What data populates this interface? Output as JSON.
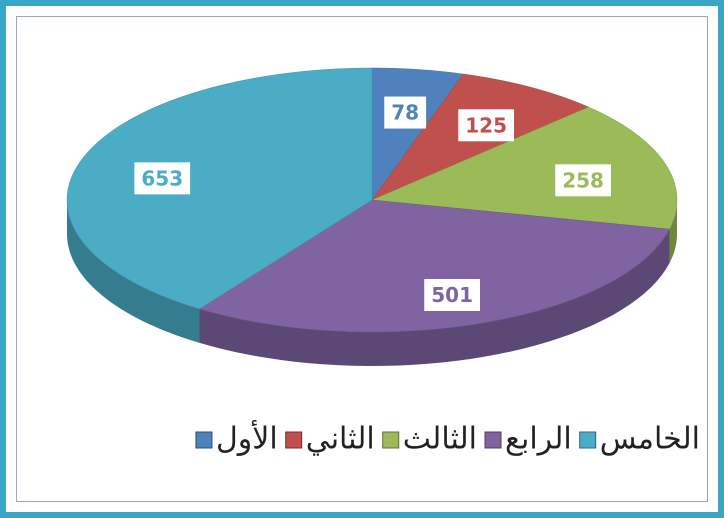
{
  "chart_data": {
    "type": "pie",
    "three_d": true,
    "categories": [
      "الأول",
      "الثاني",
      "الثالث",
      "الرابع",
      "الخامس"
    ],
    "values": [
      78,
      125,
      258,
      501,
      653
    ],
    "colors": [
      "#4f81bd",
      "#c0504d",
      "#9bbb59",
      "#8064a2",
      "#4bacc6"
    ],
    "legend": "bottom"
  }
}
